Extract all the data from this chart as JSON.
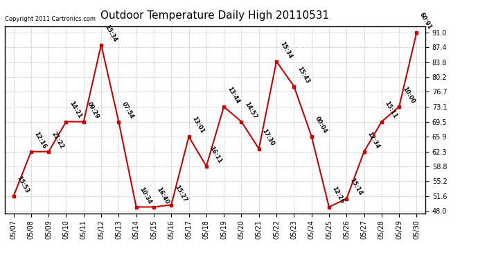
{
  "title": "Outdoor Temperature Daily High 20110531",
  "copyright": "Copyright 2011 Cartronics.com",
  "dates": [
    "05/07",
    "05/08",
    "05/09",
    "05/10",
    "05/11",
    "05/12",
    "05/13",
    "05/14",
    "05/15",
    "05/16",
    "05/17",
    "05/18",
    "05/19",
    "05/20",
    "05/21",
    "05/22",
    "05/23",
    "05/24",
    "05/25",
    "05/26",
    "05/27",
    "05/28",
    "05/29",
    "05/30"
  ],
  "values": [
    51.6,
    62.3,
    62.3,
    69.5,
    69.5,
    88.0,
    69.5,
    49.0,
    49.0,
    49.5,
    65.9,
    58.8,
    73.1,
    69.5,
    63.0,
    84.0,
    78.0,
    66.0,
    49.0,
    51.0,
    62.3,
    69.5,
    73.1,
    91.0
  ],
  "labels": [
    "15:53",
    "12:16",
    "21:22",
    "14:21",
    "09:29",
    "15:34",
    "07:54",
    "10:34",
    "16:40",
    "15:27",
    "13:01",
    "16:11",
    "13:44",
    "14:57",
    "17:30",
    "15:34",
    "15:43",
    "00:04",
    "12:26",
    "15:14",
    "12:34",
    "15:11",
    "10:00",
    "60:91"
  ],
  "yticks": [
    48.0,
    51.6,
    55.2,
    58.8,
    62.3,
    65.9,
    69.5,
    73.1,
    76.7,
    80.2,
    83.8,
    87.4,
    91.0
  ],
  "ylim": [
    47.5,
    92.5
  ],
  "line_color": "#cc0000",
  "marker_color": "#cc0000",
  "bg_color": "#ffffff",
  "grid_color": "#cccccc",
  "title_fontsize": 11,
  "label_fontsize": 6,
  "tick_fontsize": 7,
  "copyright_fontsize": 6
}
